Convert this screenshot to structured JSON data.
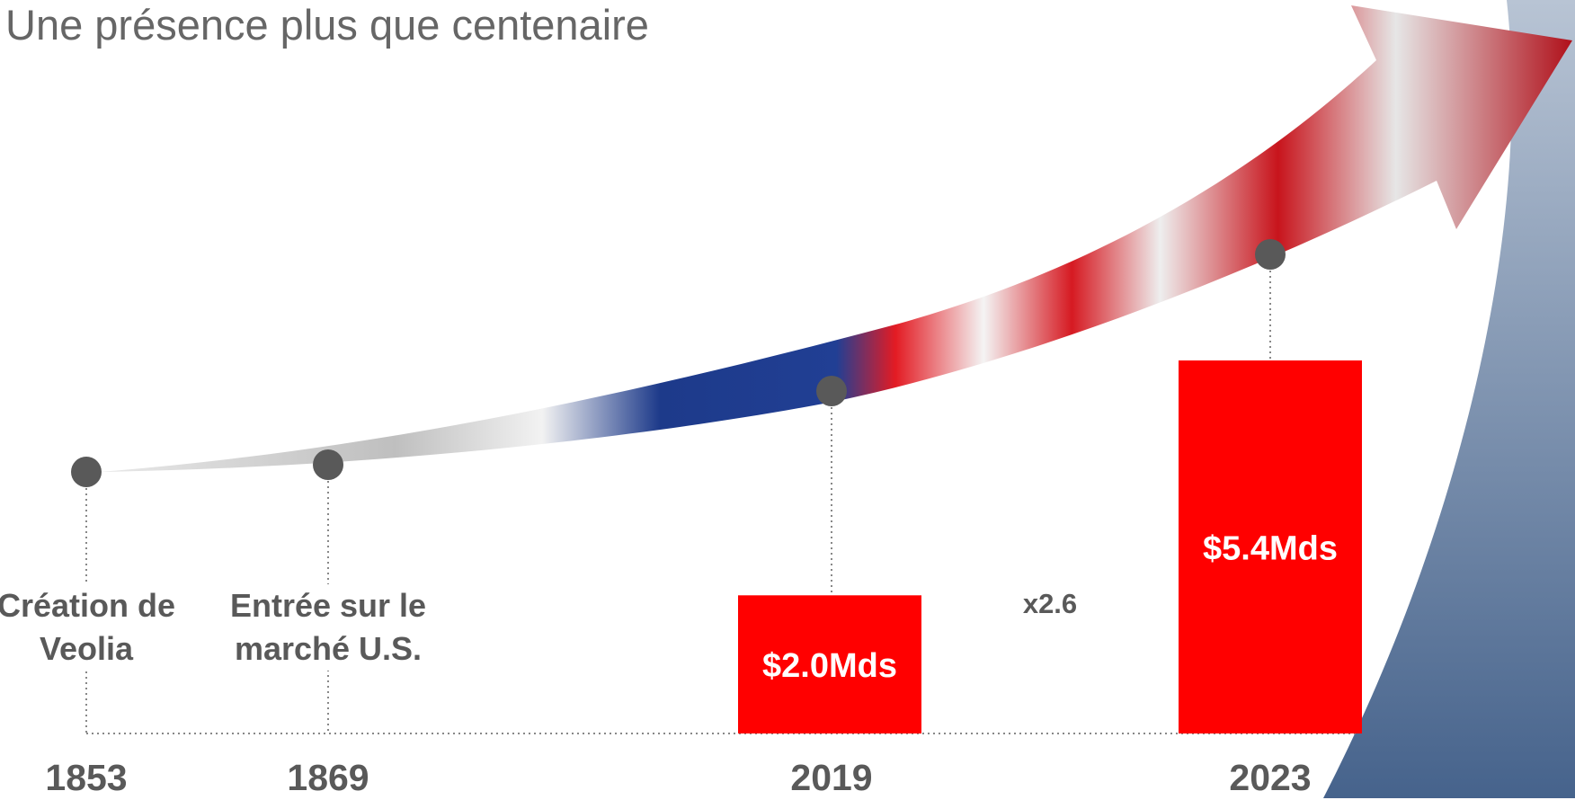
{
  "chart_data": {
    "type": "bar",
    "title": "Une présence plus que centenaire",
    "categories": [
      "1853",
      "1869",
      "2019",
      "2023"
    ],
    "values": [
      null,
      null,
      2.0,
      5.4
    ],
    "value_labels": [
      null,
      null,
      "$2.0Mds",
      "$5.4Mds"
    ],
    "color": "#ff0000",
    "annotations": [
      "Création de Veolia",
      "Entrée sur le marché U.S.",
      "x2.6"
    ]
  }
}
